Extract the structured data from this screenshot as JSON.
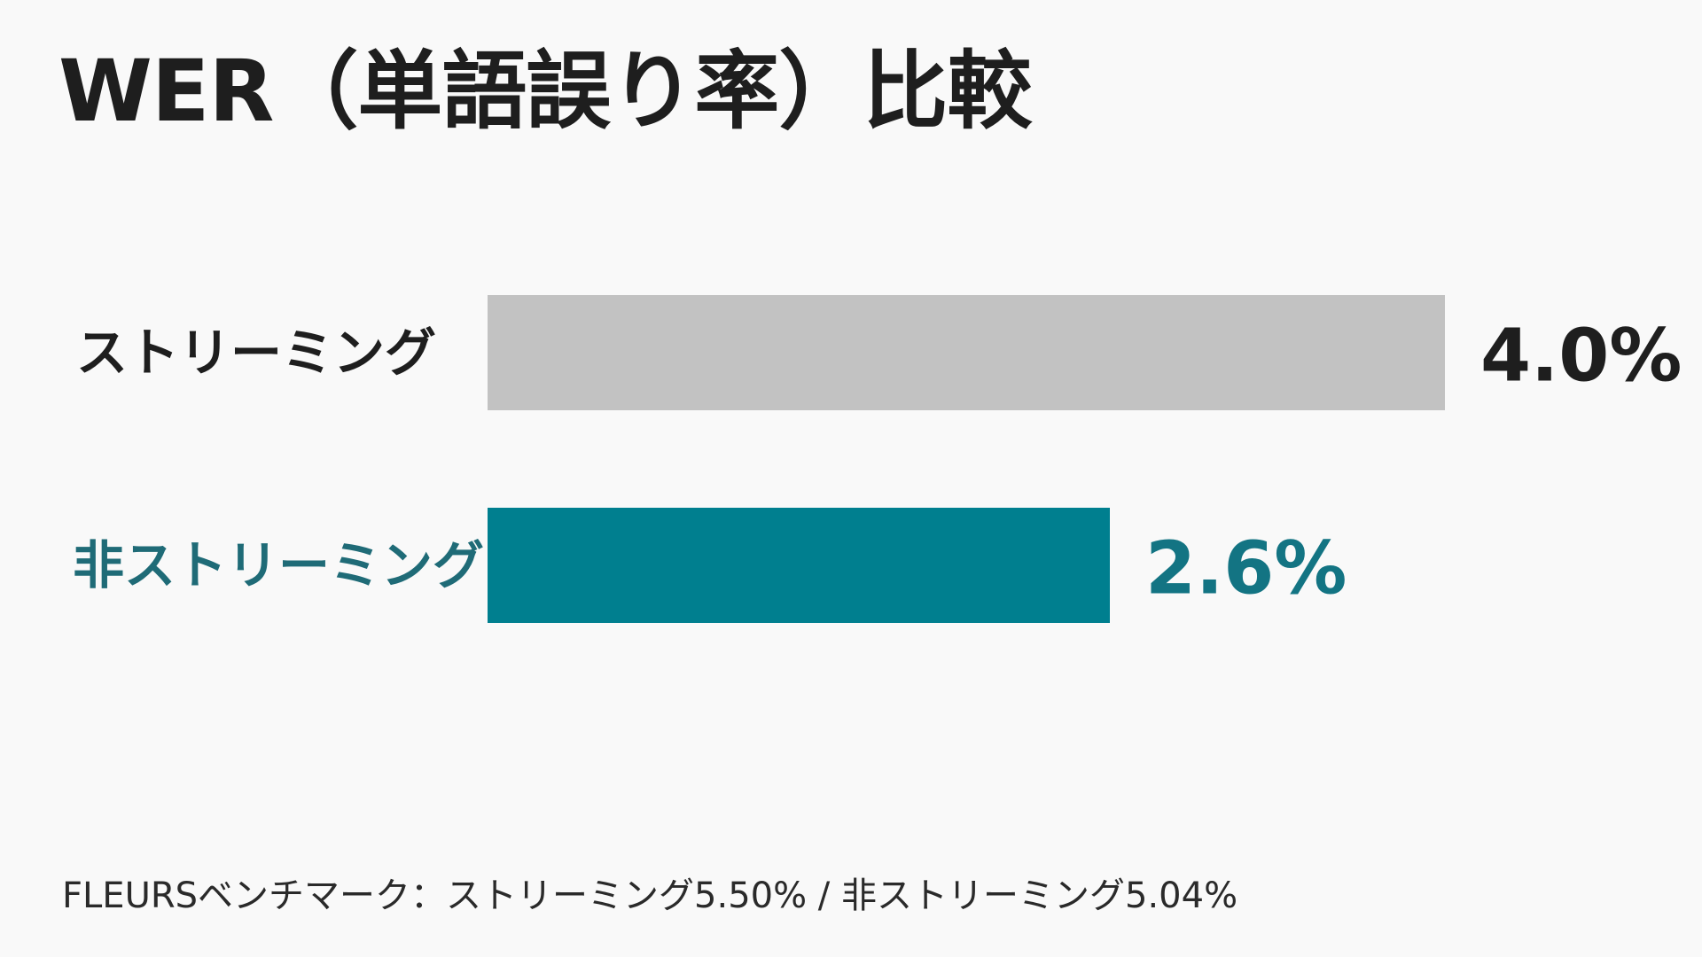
{
  "chart_data": {
    "type": "bar",
    "orientation": "horizontal",
    "title": "WER（単語誤り率）比較",
    "categories": [
      "ストリーミング",
      "非ストリーミング"
    ],
    "values": [
      4.0,
      2.6
    ],
    "value_labels": [
      "4.0%",
      "2.6%"
    ],
    "xlim": [
      0,
      4.0
    ],
    "unit": "%",
    "bar_colors": [
      "#c2c2c2",
      "#007f8f"
    ],
    "label_colors": [
      "#1e1e1e",
      "#1f6b77"
    ],
    "value_label_colors": [
      "#1e1e1e",
      "#137483"
    ],
    "grid": false,
    "legend": "none"
  },
  "footnote": "FLEURSベンチマーク：ストリーミング5.50% / 非ストリーミング5.04%"
}
